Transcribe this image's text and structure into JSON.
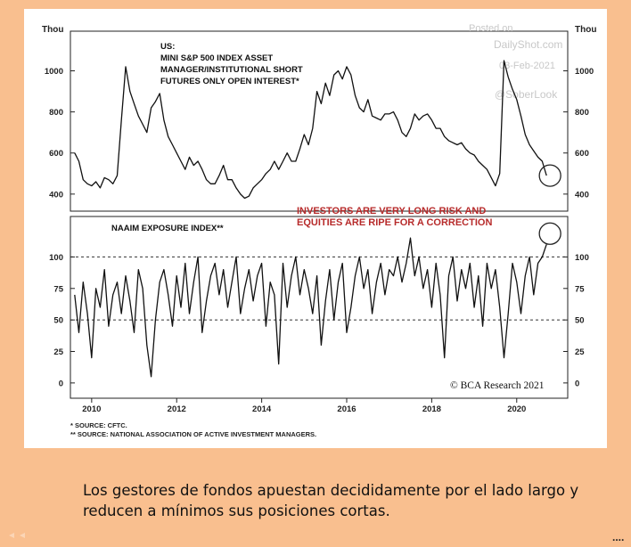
{
  "slide": {
    "caption": "Los gestores de fondos apuestan decididamente por el lado largo y reducen a mínimos sus posiciones cortas.",
    "continuation": "....",
    "background_color": "#f9bf8f"
  },
  "chart_data": [
    {
      "type": "line",
      "title": "US:\nMINI S&P 500 INDEX ASSET\nMANAGER/INSTITUTIONAL SHORT\nFUTURES ONLY OPEN INTEREST",
      "title_marker": "*",
      "title_lines": [
        "US:",
        "MINI S&P 500 INDEX ASSET",
        "MANAGER/INSTITUTIONAL SHORT",
        "FUTURES ONLY OPEN INTEREST*"
      ],
      "unit_left": "Thou",
      "unit_right": "Thou",
      "yticks": [
        400,
        600,
        800,
        1000
      ],
      "ylim": [
        330,
        1180
      ],
      "series": [
        {
          "color": "#111111",
          "x": [
            2009.6,
            2009.7,
            2009.8,
            2009.9,
            2010.0,
            2010.1,
            2010.2,
            2010.3,
            2010.4,
            2010.5,
            2010.6,
            2010.7,
            2010.8,
            2010.9,
            2011.0,
            2011.1,
            2011.2,
            2011.3,
            2011.4,
            2011.5,
            2011.6,
            2011.7,
            2011.8,
            2011.9,
            2012.0,
            2012.1,
            2012.2,
            2012.3,
            2012.4,
            2012.5,
            2012.6,
            2012.7,
            2012.8,
            2012.9,
            2013.0,
            2013.1,
            2013.2,
            2013.3,
            2013.4,
            2013.5,
            2013.6,
            2013.7,
            2013.8,
            2013.9,
            2014.0,
            2014.1,
            2014.2,
            2014.3,
            2014.4,
            2014.5,
            2014.6,
            2014.7,
            2014.8,
            2014.9,
            2015.0,
            2015.1,
            2015.2,
            2015.3,
            2015.4,
            2015.5,
            2015.6,
            2015.7,
            2015.8,
            2015.9,
            2016.0,
            2016.1,
            2016.2,
            2016.3,
            2016.4,
            2016.5,
            2016.6,
            2016.7,
            2016.8,
            2016.9,
            2017.0,
            2017.1,
            2017.2,
            2017.3,
            2017.4,
            2017.5,
            2017.6,
            2017.7,
            2017.8,
            2017.9,
            2018.0,
            2018.1,
            2018.2,
            2018.3,
            2018.4,
            2018.5,
            2018.6,
            2018.7,
            2018.8,
            2018.9,
            2019.0,
            2019.1,
            2019.2,
            2019.3,
            2019.4,
            2019.5,
            2019.6,
            2019.7,
            2019.8,
            2019.9,
            2020.0,
            2020.1,
            2020.2,
            2020.3,
            2020.4,
            2020.5,
            2020.6,
            2020.7
          ],
          "y": [
            600,
            560,
            470,
            450,
            440,
            460,
            430,
            480,
            470,
            450,
            490,
            760,
            1020,
            900,
            840,
            780,
            740,
            700,
            820,
            850,
            890,
            760,
            680,
            640,
            600,
            560,
            520,
            580,
            540,
            560,
            520,
            470,
            450,
            450,
            490,
            540,
            470,
            470,
            430,
            400,
            380,
            390,
            430,
            450,
            470,
            500,
            520,
            560,
            520,
            560,
            600,
            560,
            560,
            620,
            690,
            640,
            720,
            900,
            840,
            940,
            880,
            980,
            1000,
            960,
            1020,
            980,
            880,
            820,
            800,
            860,
            780,
            770,
            760,
            790,
            790,
            800,
            760,
            700,
            680,
            720,
            790,
            760,
            780,
            790,
            760,
            720,
            720,
            680,
            660,
            650,
            640,
            650,
            620,
            600,
            590,
            560,
            540,
            520,
            480,
            440,
            500,
            1050,
            970,
            910,
            860,
            780,
            690,
            640,
            610,
            580,
            560,
            490
          ]
        }
      ]
    },
    {
      "type": "line",
      "title": "NAAIM EXPOSURE INDEX**",
      "yticks": [
        0,
        25,
        50,
        75,
        100
      ],
      "ylim": [
        -10,
        130
      ],
      "reference_lines": [
        100,
        50
      ],
      "series": [
        {
          "color": "#111111",
          "x": [
            2009.6,
            2009.7,
            2009.8,
            2009.9,
            2010.0,
            2010.1,
            2010.2,
            2010.3,
            2010.4,
            2010.5,
            2010.6,
            2010.7,
            2010.8,
            2010.9,
            2011.0,
            2011.1,
            2011.2,
            2011.3,
            2011.4,
            2011.5,
            2011.6,
            2011.7,
            2011.8,
            2011.9,
            2012.0,
            2012.1,
            2012.2,
            2012.3,
            2012.4,
            2012.5,
            2012.6,
            2012.7,
            2012.8,
            2012.9,
            2013.0,
            2013.1,
            2013.2,
            2013.3,
            2013.4,
            2013.5,
            2013.6,
            2013.7,
            2013.8,
            2013.9,
            2014.0,
            2014.1,
            2014.2,
            2014.3,
            2014.4,
            2014.5,
            2014.6,
            2014.7,
            2014.8,
            2014.9,
            2015.0,
            2015.1,
            2015.2,
            2015.3,
            2015.4,
            2015.5,
            2015.6,
            2015.7,
            2015.8,
            2015.9,
            2016.0,
            2016.1,
            2016.2,
            2016.3,
            2016.4,
            2016.5,
            2016.6,
            2016.7,
            2016.8,
            2016.9,
            2017.0,
            2017.1,
            2017.2,
            2017.3,
            2017.4,
            2017.5,
            2017.6,
            2017.7,
            2017.8,
            2017.9,
            2018.0,
            2018.1,
            2018.2,
            2018.3,
            2018.4,
            2018.5,
            2018.6,
            2018.7,
            2018.8,
            2018.9,
            2019.0,
            2019.1,
            2019.2,
            2019.3,
            2019.4,
            2019.5,
            2019.6,
            2019.7,
            2019.8,
            2019.9,
            2020.0,
            2020.1,
            2020.2,
            2020.3,
            2020.4,
            2020.5,
            2020.6,
            2020.7
          ],
          "y": [
            70,
            40,
            80,
            55,
            20,
            75,
            60,
            90,
            45,
            70,
            80,
            55,
            85,
            65,
            40,
            90,
            75,
            30,
            5,
            50,
            80,
            90,
            70,
            45,
            85,
            60,
            95,
            55,
            80,
            100,
            40,
            65,
            85,
            95,
            70,
            90,
            60,
            80,
            100,
            55,
            75,
            90,
            65,
            85,
            95,
            45,
            80,
            70,
            15,
            95,
            60,
            85,
            100,
            70,
            90,
            75,
            55,
            85,
            30,
            65,
            90,
            50,
            80,
            95,
            40,
            60,
            85,
            100,
            75,
            90,
            55,
            80,
            95,
            70,
            90,
            85,
            100,
            80,
            95,
            115,
            85,
            100,
            75,
            90,
            60,
            95,
            70,
            20,
            85,
            100,
            65,
            90,
            75,
            95,
            60,
            85,
            45,
            95,
            75,
            90,
            60,
            20,
            55,
            95,
            80,
            55,
            85,
            100,
            70,
            95,
            100,
            110
          ]
        }
      ]
    }
  ],
  "xaxis": {
    "ticks": [
      "2010",
      "2012",
      "2014",
      "2016",
      "2018",
      "2020"
    ],
    "xlim": [
      2009.5,
      2021.2
    ]
  },
  "annotations": {
    "warning": [
      "INVESTORS ARE VERY LONG RISK AND",
      "EQUITIES ARE RIPE FOR A CORRECTION"
    ],
    "warning_color": "#b72b2b",
    "watermark": [
      "Posted on",
      "DailyShot.com",
      "03-Feb-2021",
      "@SoberLook"
    ],
    "source_credit": "© BCA Research 2021",
    "footnotes": [
      "*  SOURCE: CFTC.",
      "** SOURCE: NATIONAL ASSOCIATION OF ACTIVE INVESTMENT MANAGERS."
    ]
  }
}
